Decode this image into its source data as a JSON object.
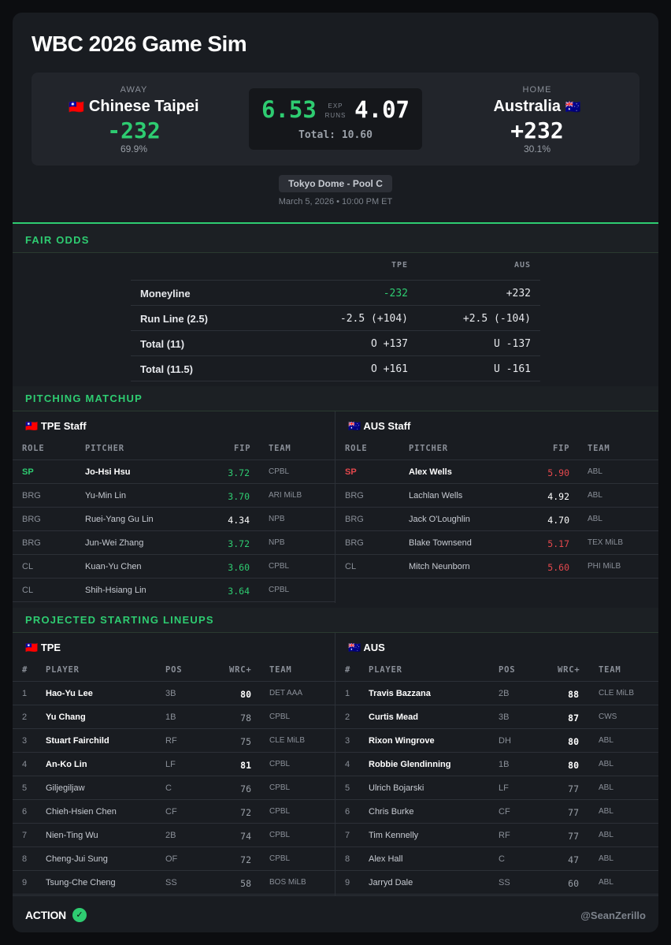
{
  "title": "WBC 2026 Game Sim",
  "away": {
    "side_label": "AWAY",
    "flag": "🇹🇼",
    "name": "Chinese Taipei",
    "moneyline": "-232",
    "win_pct": "69.9%",
    "exp_runs": "6.53"
  },
  "home": {
    "side_label": "HOME",
    "flag": "🇦🇺",
    "name": "Australia",
    "moneyline": "+232",
    "win_pct": "30.1%",
    "exp_runs": "4.07"
  },
  "exp_label_1": "EXP",
  "exp_label_2": "RUNS",
  "total_runs": "Total: 10.60",
  "venue": "Tokyo Dome - Pool C",
  "datetime": "March 5, 2026 • 10:00 PM ET",
  "fair_odds": {
    "section_title": "FAIR ODDS",
    "col_away": "TPE",
    "col_home": "AUS",
    "rows": [
      {
        "label": "Moneyline",
        "away": "-232",
        "home": "+232"
      },
      {
        "label": "Run Line (2.5)",
        "away": "-2.5 (+104)",
        "home": "+2.5 (-104)"
      },
      {
        "label": "Total (11)",
        "away": "O +137",
        "home": "U -137"
      },
      {
        "label": "Total (11.5)",
        "away": "O +161",
        "home": "U -161"
      }
    ]
  },
  "pitching": {
    "section_title": "PITCHING MATCHUP",
    "headers": {
      "role": "ROLE",
      "pitcher": "PITCHER",
      "fip": "FIP",
      "team": "TEAM"
    },
    "away": {
      "title": "TPE Staff",
      "flag": "🇹🇼",
      "rows": [
        {
          "role": "SP",
          "pitcher": "Jo-Hsi Hsu",
          "fip": "3.72",
          "team": "CPBL"
        },
        {
          "role": "BRG",
          "pitcher": "Yu-Min Lin",
          "fip": "3.70",
          "team": "ARI MiLB"
        },
        {
          "role": "BRG",
          "pitcher": "Ruei-Yang Gu Lin",
          "fip": "4.34",
          "team": "NPB"
        },
        {
          "role": "BRG",
          "pitcher": "Jun-Wei Zhang",
          "fip": "3.72",
          "team": "NPB"
        },
        {
          "role": "CL",
          "pitcher": "Kuan-Yu Chen",
          "fip": "3.60",
          "team": "CPBL"
        },
        {
          "role": "CL",
          "pitcher": "Shih-Hsiang Lin",
          "fip": "3.64",
          "team": "CPBL"
        }
      ]
    },
    "home": {
      "title": "AUS Staff",
      "flag": "🇦🇺",
      "rows": [
        {
          "role": "SP",
          "pitcher": "Alex Wells",
          "fip": "5.90",
          "team": "ABL"
        },
        {
          "role": "BRG",
          "pitcher": "Lachlan Wells",
          "fip": "4.92",
          "team": "ABL"
        },
        {
          "role": "BRG",
          "pitcher": "Jack O'Loughlin",
          "fip": "4.70",
          "team": "ABL"
        },
        {
          "role": "BRG",
          "pitcher": "Blake Townsend",
          "fip": "5.17",
          "team": "TEX MiLB"
        },
        {
          "role": "CL",
          "pitcher": "Mitch Neunborn",
          "fip": "5.60",
          "team": "PHI MiLB"
        }
      ]
    }
  },
  "lineups": {
    "section_title": "PROJECTED STARTING LINEUPS",
    "headers": {
      "num": "#",
      "player": "PLAYER",
      "pos": "POS",
      "wrc": "WRC+",
      "team": "TEAM"
    },
    "away": {
      "title": "TPE",
      "flag": "🇹🇼",
      "rows": [
        {
          "num": "1",
          "player": "Hao-Yu Lee",
          "pos": "3B",
          "wrc": "80",
          "team": "DET AAA"
        },
        {
          "num": "2",
          "player": "Yu Chang",
          "pos": "1B",
          "wrc": "78",
          "team": "CPBL"
        },
        {
          "num": "3",
          "player": "Stuart Fairchild",
          "pos": "RF",
          "wrc": "75",
          "team": "CLE MiLB"
        },
        {
          "num": "4",
          "player": "An-Ko Lin",
          "pos": "LF",
          "wrc": "81",
          "team": "CPBL"
        },
        {
          "num": "5",
          "player": "Giljegiljaw",
          "pos": "C",
          "wrc": "76",
          "team": "CPBL"
        },
        {
          "num": "6",
          "player": "Chieh-Hsien Chen",
          "pos": "CF",
          "wrc": "72",
          "team": "CPBL"
        },
        {
          "num": "7",
          "player": "Nien-Ting Wu",
          "pos": "2B",
          "wrc": "74",
          "team": "CPBL"
        },
        {
          "num": "8",
          "player": "Cheng-Jui Sung",
          "pos": "OF",
          "wrc": "72",
          "team": "CPBL"
        },
        {
          "num": "9",
          "player": "Tsung-Che Cheng",
          "pos": "SS",
          "wrc": "58",
          "team": "BOS MiLB"
        }
      ]
    },
    "home": {
      "title": "AUS",
      "flag": "🇦🇺",
      "rows": [
        {
          "num": "1",
          "player": "Travis Bazzana",
          "pos": "2B",
          "wrc": "88",
          "team": "CLE MiLB"
        },
        {
          "num": "2",
          "player": "Curtis Mead",
          "pos": "3B",
          "wrc": "87",
          "team": "CWS"
        },
        {
          "num": "3",
          "player": "Rixon Wingrove",
          "pos": "DH",
          "wrc": "80",
          "team": "ABL"
        },
        {
          "num": "4",
          "player": "Robbie Glendinning",
          "pos": "1B",
          "wrc": "80",
          "team": "ABL"
        },
        {
          "num": "5",
          "player": "Ulrich Bojarski",
          "pos": "LF",
          "wrc": "77",
          "team": "ABL"
        },
        {
          "num": "6",
          "player": "Chris Burke",
          "pos": "CF",
          "wrc": "77",
          "team": "ABL"
        },
        {
          "num": "7",
          "player": "Tim Kennelly",
          "pos": "RF",
          "wrc": "77",
          "team": "ABL"
        },
        {
          "num": "8",
          "player": "Alex Hall",
          "pos": "C",
          "wrc": "47",
          "team": "ABL"
        },
        {
          "num": "9",
          "player": "Jarryd Dale",
          "pos": "SS",
          "wrc": "60",
          "team": "ABL"
        }
      ]
    }
  },
  "footer": {
    "brand": "ACTION",
    "check_icon": "✓",
    "handle": "@SeanZerillo"
  },
  "colors": {
    "accent_green": "#2ecc71",
    "accent_red": "#e5484d",
    "background": "#0c0d10",
    "card": "#191c21"
  }
}
